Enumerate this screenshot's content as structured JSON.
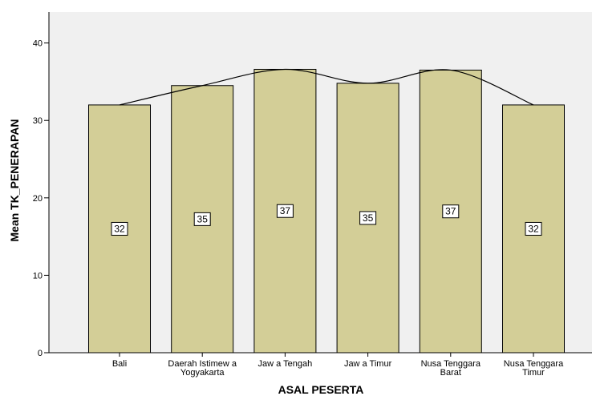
{
  "chart_data": {
    "type": "bar",
    "title": "",
    "xlabel": "ASAL PESERTA",
    "ylabel": "Mean TK_PENERAPAN",
    "ylim": [
      0,
      44
    ],
    "yticks": [
      0,
      10,
      20,
      30,
      40
    ],
    "categories": [
      [
        "Bali"
      ],
      [
        "Daerah Istimew a",
        "Yogyakarta"
      ],
      [
        "Jaw a Tengah"
      ],
      [
        "Jaw a Timur"
      ],
      [
        "Nusa Tenggara",
        "Barat"
      ],
      [
        "Nusa Tenggara",
        "Timur"
      ]
    ],
    "values": [
      32,
      34.5,
      36.6,
      34.8,
      36.5,
      32
    ],
    "data_labels": [
      "32",
      "35",
      "37",
      "35",
      "37",
      "32"
    ],
    "smooth_line": true,
    "grid": false,
    "colors": {
      "plot_background": "#f0f0f0",
      "bar_fill": "#d3ce97",
      "bar_stroke": "#000000",
      "line": "#000000",
      "label_box_fill": "#ffffff"
    }
  }
}
